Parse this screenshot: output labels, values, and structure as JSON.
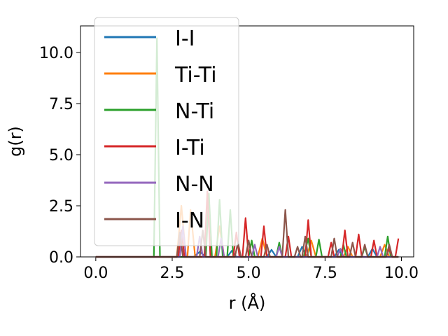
{
  "chart_data": {
    "type": "line",
    "title": "",
    "xlabel": "r (Å)",
    "ylabel": "g(r)",
    "xlim": [
      -0.5,
      10.4
    ],
    "ylim": [
      0.0,
      11.3
    ],
    "x_ticks": [
      {
        "value": 0.0,
        "label": "0.0"
      },
      {
        "value": 2.5,
        "label": "2.5"
      },
      {
        "value": 5.0,
        "label": "5.0"
      },
      {
        "value": 7.5,
        "label": "7.5"
      },
      {
        "value": 10.0,
        "label": "10.0"
      }
    ],
    "y_ticks": [
      {
        "value": 0.0,
        "label": "0.0"
      },
      {
        "value": 2.5,
        "label": "2.5"
      },
      {
        "value": 5.0,
        "label": "5.0"
      },
      {
        "value": 7.5,
        "label": "7.5"
      },
      {
        "value": 10.0,
        "label": "10.0"
      }
    ],
    "grid": false,
    "legend_position": "upper-left",
    "series": [
      {
        "name": "I-I",
        "color": "#1f77b4",
        "points": [
          [
            0,
            0
          ],
          [
            3.2,
            0
          ],
          [
            3.4,
            0.25
          ],
          [
            3.6,
            0
          ],
          [
            4.3,
            0
          ],
          [
            4.45,
            0.3
          ],
          [
            4.6,
            0
          ],
          [
            5.6,
            0
          ],
          [
            5.75,
            0.35
          ],
          [
            5.9,
            0
          ],
          [
            6.6,
            0
          ],
          [
            6.75,
            0.5
          ],
          [
            6.9,
            0
          ],
          [
            7.8,
            0
          ],
          [
            7.95,
            0.35
          ],
          [
            8.1,
            0
          ],
          [
            8.9,
            0
          ],
          [
            9.05,
            0.4
          ],
          [
            9.2,
            0
          ],
          [
            9.9,
            0
          ]
        ]
      },
      {
        "name": "Ti-Ti",
        "color": "#ff7f0e",
        "points": [
          [
            0,
            0
          ],
          [
            2.65,
            0
          ],
          [
            2.8,
            2.5
          ],
          [
            2.95,
            0
          ],
          [
            3.0,
            0
          ],
          [
            3.1,
            2.3
          ],
          [
            3.25,
            0
          ],
          [
            3.9,
            0
          ],
          [
            4.05,
            1.5
          ],
          [
            4.2,
            0
          ],
          [
            5.3,
            0
          ],
          [
            5.45,
            0.9
          ],
          [
            5.6,
            0
          ],
          [
            6.9,
            0
          ],
          [
            7.05,
            0.8
          ],
          [
            7.2,
            0
          ],
          [
            8.1,
            0
          ],
          [
            8.25,
            0.5
          ],
          [
            8.4,
            0
          ],
          [
            9.3,
            0
          ],
          [
            9.45,
            0.6
          ],
          [
            9.6,
            0
          ],
          [
            9.9,
            0
          ]
        ]
      },
      {
        "name": "N-Ti",
        "color": "#2ca02c",
        "points": [
          [
            0,
            0
          ],
          [
            1.9,
            0
          ],
          [
            2.0,
            10.7
          ],
          [
            2.1,
            0
          ],
          [
            3.6,
            0
          ],
          [
            3.7,
            3.1
          ],
          [
            3.8,
            0
          ],
          [
            3.95,
            0
          ],
          [
            4.05,
            2.8
          ],
          [
            4.15,
            0
          ],
          [
            4.3,
            0
          ],
          [
            4.4,
            2.3
          ],
          [
            4.5,
            0
          ],
          [
            5.0,
            0
          ],
          [
            5.1,
            0.8
          ],
          [
            5.2,
            0
          ],
          [
            5.9,
            0
          ],
          [
            6.0,
            0.7
          ],
          [
            6.1,
            0
          ],
          [
            6.8,
            0
          ],
          [
            6.95,
            0.9
          ],
          [
            7.05,
            0
          ],
          [
            7.2,
            0
          ],
          [
            7.3,
            0.85
          ],
          [
            7.4,
            0
          ],
          [
            8.0,
            0
          ],
          [
            8.1,
            0.6
          ],
          [
            8.2,
            0
          ],
          [
            8.7,
            0
          ],
          [
            8.8,
            0.5
          ],
          [
            8.9,
            0
          ],
          [
            9.45,
            0
          ],
          [
            9.55,
            1.0
          ],
          [
            9.65,
            0
          ],
          [
            9.9,
            0
          ]
        ]
      },
      {
        "name": "I-Ti",
        "color": "#d62728",
        "points": [
          [
            0,
            0
          ],
          [
            2.7,
            0
          ],
          [
            2.8,
            1.3
          ],
          [
            2.9,
            0
          ],
          [
            3.55,
            0
          ],
          [
            3.65,
            3.2
          ],
          [
            3.75,
            0
          ],
          [
            4.5,
            0
          ],
          [
            4.6,
            1.2
          ],
          [
            4.7,
            0
          ],
          [
            4.8,
            0
          ],
          [
            4.9,
            1.9
          ],
          [
            5.0,
            0
          ],
          [
            5.4,
            0
          ],
          [
            5.5,
            1.5
          ],
          [
            5.6,
            0
          ],
          [
            6.2,
            0
          ],
          [
            6.3,
            1.0
          ],
          [
            6.4,
            0
          ],
          [
            6.85,
            0
          ],
          [
            6.95,
            1.8
          ],
          [
            7.05,
            0
          ],
          [
            7.6,
            0
          ],
          [
            7.7,
            0.7
          ],
          [
            7.8,
            0
          ],
          [
            8.05,
            0
          ],
          [
            8.15,
            1.3
          ],
          [
            8.25,
            0
          ],
          [
            8.5,
            0
          ],
          [
            8.6,
            1.1
          ],
          [
            8.7,
            0
          ],
          [
            9.0,
            0
          ],
          [
            9.1,
            0.8
          ],
          [
            9.2,
            0
          ],
          [
            9.5,
            0
          ],
          [
            9.6,
            0.4
          ],
          [
            9.7,
            0
          ],
          [
            9.8,
            0
          ],
          [
            9.9,
            0.9
          ]
        ]
      },
      {
        "name": "N-N",
        "color": "#9467bd",
        "points": [
          [
            0,
            0
          ],
          [
            2.75,
            0
          ],
          [
            2.85,
            1.5
          ],
          [
            2.95,
            0
          ],
          [
            3.3,
            0
          ],
          [
            3.4,
            1.0
          ],
          [
            3.5,
            0
          ],
          [
            4.0,
            0
          ],
          [
            4.1,
            0.9
          ],
          [
            4.2,
            0
          ],
          [
            5.1,
            0
          ],
          [
            5.2,
            0.6
          ],
          [
            5.3,
            0
          ],
          [
            5.9,
            0
          ],
          [
            6.0,
            0.5
          ],
          [
            6.1,
            0
          ],
          [
            7.9,
            0
          ],
          [
            8.0,
            0.4
          ],
          [
            8.1,
            0
          ],
          [
            9.2,
            0
          ],
          [
            9.3,
            0.5
          ],
          [
            9.4,
            0
          ],
          [
            9.9,
            0
          ]
        ]
      },
      {
        "name": "I-N",
        "color": "#8c564b",
        "points": [
          [
            0,
            0
          ],
          [
            2.65,
            0
          ],
          [
            2.75,
            1.2
          ],
          [
            2.85,
            0
          ],
          [
            3.4,
            0
          ],
          [
            3.5,
            1.3
          ],
          [
            3.6,
            0
          ],
          [
            4.55,
            0
          ],
          [
            4.65,
            0.7
          ],
          [
            4.75,
            0
          ],
          [
            4.9,
            0
          ],
          [
            5.0,
            0.8
          ],
          [
            5.1,
            0
          ],
          [
            5.5,
            0
          ],
          [
            5.6,
            0.6
          ],
          [
            5.7,
            0
          ],
          [
            6.1,
            0
          ],
          [
            6.2,
            2.3
          ],
          [
            6.3,
            0
          ],
          [
            6.5,
            0
          ],
          [
            6.6,
            0.5
          ],
          [
            6.7,
            0
          ],
          [
            6.75,
            0
          ],
          [
            6.85,
            1.0
          ],
          [
            6.95,
            0
          ],
          [
            7.7,
            0
          ],
          [
            7.8,
            0.9
          ],
          [
            7.9,
            0
          ],
          [
            8.3,
            0
          ],
          [
            8.4,
            0.7
          ],
          [
            8.5,
            0
          ],
          [
            8.7,
            0
          ],
          [
            8.8,
            0.6
          ],
          [
            8.9,
            0
          ],
          [
            9.5,
            0
          ],
          [
            9.6,
            0.6
          ],
          [
            9.7,
            0
          ],
          [
            9.9,
            0
          ]
        ]
      }
    ]
  }
}
